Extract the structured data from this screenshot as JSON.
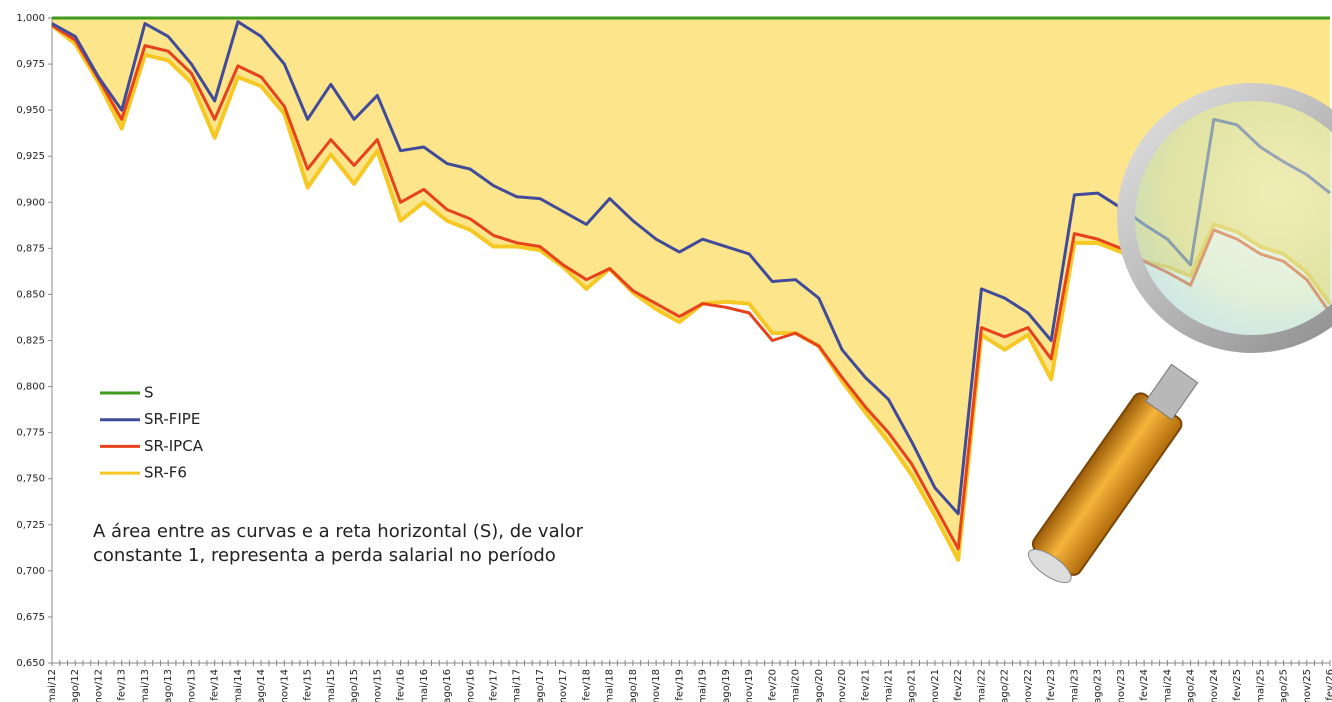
{
  "chart_data": {
    "type": "line",
    "categories": [
      "mai/12",
      "ago/12",
      "nov/12",
      "fev/13",
      "mai/13",
      "ago/13",
      "nov/13",
      "fev/14",
      "mai/14",
      "ago/14",
      "nov/14",
      "fev/15",
      "mai/15",
      "ago/15",
      "nov/15",
      "fev/16",
      "mai/16",
      "ago/16",
      "nov/16",
      "fev/17",
      "mai/17",
      "ago/17",
      "nov/17",
      "fev/18",
      "mai/18",
      "ago/18",
      "nov/18",
      "fev/19",
      "mai/19",
      "ago/19",
      "nov/19",
      "fev/20",
      "mai/20",
      "ago/20",
      "nov/20",
      "fev/21",
      "mai/21",
      "ago/21",
      "nov/21",
      "fev/22",
      "mai/22",
      "ago/22",
      "nov/22",
      "fev/23",
      "mai/23",
      "ago/23",
      "nov/23",
      "fev/24",
      "mai/24",
      "ago/24",
      "nov/24",
      "fev/25",
      "mai/25",
      "ago/25",
      "nov/25",
      "fev/26"
    ],
    "series": [
      {
        "name": "S",
        "color": "#3f9a1e",
        "values": [
          1,
          1,
          1,
          1,
          1,
          1,
          1,
          1,
          1,
          1,
          1,
          1,
          1,
          1,
          1,
          1,
          1,
          1,
          1,
          1,
          1,
          1,
          1,
          1,
          1,
          1,
          1,
          1,
          1,
          1,
          1,
          1,
          1,
          1,
          1,
          1,
          1,
          1,
          1,
          1,
          1,
          1,
          1,
          1,
          1,
          1,
          1,
          1,
          1,
          1,
          1,
          1,
          1,
          1,
          1,
          1
        ]
      },
      {
        "name": "SR-FIPE",
        "color": "#414b9a",
        "values": [
          0.997,
          0.99,
          0.968,
          0.95,
          0.997,
          0.99,
          0.975,
          0.955,
          0.998,
          0.99,
          0.975,
          0.945,
          0.964,
          0.945,
          0.958,
          0.928,
          0.93,
          0.921,
          0.918,
          0.909,
          0.903,
          0.902,
          0.895,
          0.888,
          0.902,
          0.89,
          0.88,
          0.873,
          0.88,
          0.876,
          0.872,
          0.857,
          0.858,
          0.848,
          0.82,
          0.805,
          0.793,
          0.77,
          0.745,
          0.731,
          0.853,
          0.848,
          0.84,
          0.825,
          0.904,
          0.905,
          0.897,
          0.888,
          0.88,
          0.866,
          0.945,
          0.942,
          0.93,
          0.922,
          0.915,
          0.905
        ]
      },
      {
        "name": "SR-IPCA",
        "color": "#e8421c",
        "values": [
          0.996,
          0.988,
          0.967,
          0.945,
          0.985,
          0.982,
          0.97,
          0.945,
          0.974,
          0.968,
          0.952,
          0.918,
          0.934,
          0.92,
          0.934,
          0.9,
          0.907,
          0.896,
          0.891,
          0.882,
          0.878,
          0.876,
          0.866,
          0.858,
          0.864,
          0.852,
          0.845,
          0.838,
          0.845,
          0.843,
          0.84,
          0.825,
          0.829,
          0.822,
          0.805,
          0.789,
          0.775,
          0.758,
          0.735,
          0.712,
          0.832,
          0.827,
          0.832,
          0.815,
          0.883,
          0.88,
          0.875,
          0.868,
          0.862,
          0.855,
          0.885,
          0.88,
          0.872,
          0.868,
          0.858,
          0.84
        ]
      },
      {
        "name": "SR-F6",
        "color": "#f6c824",
        "values": [
          0.996,
          0.986,
          0.965,
          0.94,
          0.98,
          0.977,
          0.965,
          0.935,
          0.968,
          0.963,
          0.948,
          0.908,
          0.926,
          0.91,
          0.928,
          0.89,
          0.9,
          0.89,
          0.885,
          0.876,
          0.876,
          0.874,
          0.865,
          0.853,
          0.864,
          0.851,
          0.842,
          0.835,
          0.845,
          0.846,
          0.845,
          0.829,
          0.829,
          0.822,
          0.803,
          0.786,
          0.77,
          0.752,
          0.73,
          0.706,
          0.828,
          0.82,
          0.828,
          0.804,
          0.878,
          0.878,
          0.873,
          0.868,
          0.865,
          0.86,
          0.888,
          0.884,
          0.876,
          0.872,
          0.862,
          0.845
        ]
      }
    ],
    "area_color": "#fde58c",
    "ylim": [
      0.65,
      1.0
    ],
    "yticks": [
      {
        "value": 0.65,
        "label": "0,650"
      },
      {
        "value": 0.675,
        "label": "0,675"
      },
      {
        "value": 0.7,
        "label": "0,700"
      },
      {
        "value": 0.725,
        "label": "0,725"
      },
      {
        "value": 0.75,
        "label": "0,750"
      },
      {
        "value": 0.775,
        "label": "0,775"
      },
      {
        "value": 0.8,
        "label": "0,800"
      },
      {
        "value": 0.825,
        "label": "0,825"
      },
      {
        "value": 0.85,
        "label": "0,850"
      },
      {
        "value": 0.875,
        "label": "0,875"
      },
      {
        "value": 0.9,
        "label": "0,900"
      },
      {
        "value": 0.925,
        "label": "0,925"
      },
      {
        "value": 0.95,
        "label": "0,950"
      },
      {
        "value": 0.975,
        "label": "0,975"
      },
      {
        "value": 1.0,
        "label": "1,000"
      }
    ],
    "annotation": [
      "A área entre as curvas e a reta horizontal (S), de valor",
      "constante 1, representa a perda salarial no período"
    ]
  }
}
